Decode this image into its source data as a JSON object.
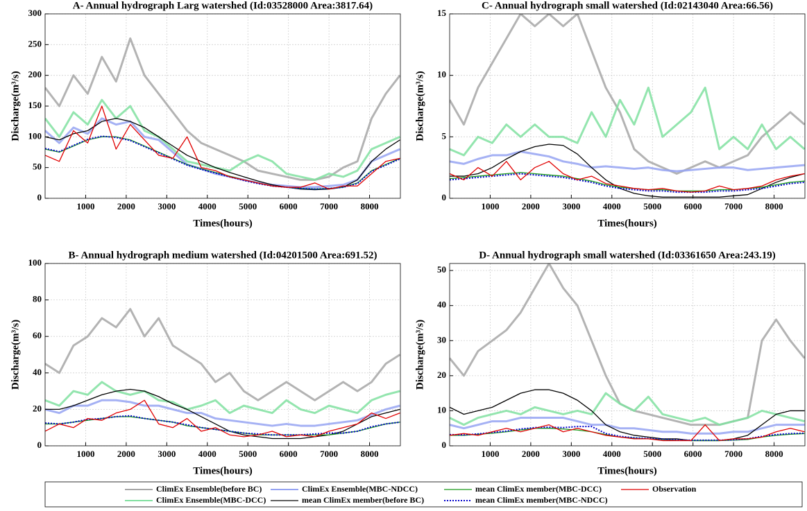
{
  "chart_data": [
    {
      "type": "line",
      "title": "A- Annual hydrograph Larg watershed (Id:03528000 Area:3817.64)",
      "xlabel": "Times(hours)",
      "ylabel": "Discharge(m³/s)",
      "x": [
        0,
        350,
        700,
        1050,
        1400,
        1750,
        2100,
        2450,
        2800,
        3150,
        3500,
        3850,
        4200,
        4550,
        4900,
        5250,
        5600,
        5950,
        6300,
        6650,
        7000,
        7350,
        7700,
        8050,
        8400,
        8750
      ],
      "xlim": [
        0,
        8760
      ],
      "xticks": [
        1000,
        2000,
        3000,
        4000,
        5000,
        6000,
        7000,
        8000
      ],
      "ylim": [
        0,
        300
      ],
      "yticks": [
        0,
        50,
        100,
        150,
        200,
        250,
        300
      ],
      "grid": true,
      "series": [
        {
          "name": "ClimEx Ensemble(before BC)",
          "color": "#a6a6a6",
          "style": "ensemble",
          "values": [
            180,
            150,
            200,
            170,
            230,
            190,
            260,
            200,
            170,
            140,
            110,
            90,
            80,
            70,
            60,
            45,
            40,
            35,
            30,
            30,
            35,
            50,
            60,
            130,
            170,
            200
          ]
        },
        {
          "name": "ClimEx Ensemble(MBC-DCC)",
          "color": "#80e0a0",
          "style": "ensemble",
          "values": [
            130,
            100,
            140,
            120,
            160,
            130,
            150,
            110,
            100,
            80,
            60,
            55,
            50,
            45,
            60,
            70,
            60,
            40,
            35,
            30,
            40,
            35,
            45,
            80,
            90,
            100
          ]
        },
        {
          "name": "ClimEx Ensemble(MBC-NDCC)",
          "color": "#95a3f2",
          "style": "ensemble",
          "values": [
            110,
            90,
            115,
            105,
            130,
            120,
            125,
            100,
            95,
            75,
            55,
            48,
            40,
            35,
            30,
            25,
            22,
            20,
            18,
            18,
            20,
            22,
            30,
            60,
            70,
            80
          ]
        },
        {
          "name": "mean ClimEx member(before BC)",
          "color": "#000000",
          "style": "mean",
          "values": [
            100,
            95,
            105,
            110,
            125,
            130,
            125,
            115,
            100,
            85,
            70,
            60,
            50,
            42,
            35,
            28,
            22,
            18,
            15,
            14,
            15,
            18,
            30,
            60,
            80,
            95
          ]
        },
        {
          "name": "mean ClimEx member(MBC-DCC)",
          "color": "#1a9a1a",
          "style": "mean",
          "values": [
            80,
            75,
            85,
            95,
            100,
            100,
            95,
            85,
            75,
            65,
            55,
            48,
            42,
            36,
            30,
            25,
            20,
            18,
            16,
            15,
            16,
            18,
            25,
            45,
            55,
            65
          ]
        },
        {
          "name": "mean ClimEx member(MBC-NDCC)",
          "color": "#0000cc",
          "style": "dotted",
          "values": [
            81,
            76,
            86,
            96,
            101,
            99,
            94,
            84,
            74,
            64,
            54,
            47,
            41,
            35,
            29,
            24,
            20,
            18,
            16,
            15,
            16,
            18,
            24,
            44,
            54,
            64
          ]
        },
        {
          "name": "Observation",
          "color": "#e00000",
          "style": "mean",
          "values": [
            70,
            60,
            110,
            90,
            150,
            80,
            120,
            95,
            70,
            65,
            100,
            50,
            45,
            35,
            30,
            25,
            20,
            18,
            18,
            25,
            15,
            20,
            20,
            40,
            60,
            65
          ]
        }
      ]
    },
    {
      "type": "line",
      "title": "C- Annual hydrograph small watershed (Id:02143040 Area:66.56)",
      "xlabel": "Times(hours)",
      "ylabel": "Discharge(m³/s)",
      "x": [
        0,
        350,
        700,
        1050,
        1400,
        1750,
        2100,
        2450,
        2800,
        3150,
        3500,
        3850,
        4200,
        4550,
        4900,
        5250,
        5600,
        5950,
        6300,
        6650,
        7000,
        7350,
        7700,
        8050,
        8400,
        8750
      ],
      "xlim": [
        0,
        8760
      ],
      "xticks": [
        1000,
        2000,
        3000,
        4000,
        5000,
        6000,
        7000,
        8000
      ],
      "ylim": [
        0,
        15
      ],
      "yticks": [
        0,
        5,
        10,
        15
      ],
      "grid": true,
      "series": [
        {
          "name": "ClimEx Ensemble(before BC)",
          "color": "#a6a6a6",
          "style": "ensemble",
          "values": [
            8,
            6,
            9,
            11,
            13,
            15,
            14,
            15,
            14,
            15,
            12,
            9,
            7,
            4,
            3,
            2.5,
            2,
            2.5,
            3,
            2.5,
            3,
            3.5,
            5,
            6,
            7,
            6
          ]
        },
        {
          "name": "ClimEx Ensemble(MBC-DCC)",
          "color": "#80e0a0",
          "style": "ensemble",
          "values": [
            4,
            3.5,
            5,
            4.5,
            6,
            5,
            6,
            5,
            5,
            4.5,
            7,
            5,
            8,
            6,
            9,
            5,
            6,
            7,
            9,
            4,
            5,
            4,
            6,
            4,
            5,
            4
          ]
        },
        {
          "name": "ClimEx Ensemble(MBC-NDCC)",
          "color": "#95a3f2",
          "style": "ensemble",
          "values": [
            3,
            2.8,
            3.2,
            3.5,
            3.5,
            3.8,
            3.6,
            3.4,
            3,
            2.8,
            2.5,
            2.6,
            2.5,
            2.4,
            2.5,
            2.3,
            2.2,
            2.3,
            2.4,
            2.5,
            2.5,
            2.3,
            2.4,
            2.5,
            2.6,
            2.7
          ]
        },
        {
          "name": "mean ClimEx member(before BC)",
          "color": "#000000",
          "style": "mean",
          "values": [
            1.8,
            1.8,
            2,
            2.5,
            3.2,
            3.8,
            4.2,
            4.4,
            4.3,
            3.6,
            2.5,
            1.5,
            0.8,
            0.4,
            0.2,
            0.1,
            0.1,
            0.1,
            0.1,
            0.1,
            0.2,
            0.3,
            0.8,
            1.3,
            1.7,
            2
          ]
        },
        {
          "name": "mean ClimEx member(MBC-DCC)",
          "color": "#1a9a1a",
          "style": "mean",
          "values": [
            1.6,
            1.7,
            1.8,
            1.9,
            2,
            2.1,
            2,
            1.9,
            1.8,
            1.6,
            1.4,
            1.1,
            0.9,
            0.8,
            0.7,
            0.7,
            0.6,
            0.6,
            0.6,
            0.7,
            0.7,
            0.8,
            0.9,
            1.1,
            1.3,
            1.4
          ]
        },
        {
          "name": "mean ClimEx member(MBC-NDCC)",
          "color": "#0000cc",
          "style": "dotted",
          "values": [
            1.5,
            1.6,
            1.7,
            1.8,
            1.9,
            2,
            1.9,
            1.8,
            1.7,
            1.5,
            1.3,
            1,
            0.8,
            0.7,
            0.6,
            0.6,
            0.5,
            0.5,
            0.5,
            0.6,
            0.6,
            0.7,
            0.8,
            1,
            1.2,
            1.3
          ]
        },
        {
          "name": "Observation",
          "color": "#e00000",
          "style": "mean",
          "values": [
            2,
            1.5,
            2.5,
            1.8,
            3,
            1.5,
            2.5,
            3,
            2,
            1.5,
            1.8,
            1.2,
            1,
            0.8,
            0.7,
            0.8,
            0.6,
            0.5,
            0.6,
            1,
            0.7,
            0.8,
            1,
            1.5,
            1.8,
            2
          ]
        }
      ]
    },
    {
      "type": "line",
      "title": "B- Annual hydrograph medium watershed (Id:04201500 Area:691.52)",
      "xlabel": "Times(hours)",
      "ylabel": "Discharge(m³/s)",
      "x": [
        0,
        350,
        700,
        1050,
        1400,
        1750,
        2100,
        2450,
        2800,
        3150,
        3500,
        3850,
        4200,
        4550,
        4900,
        5250,
        5600,
        5950,
        6300,
        6650,
        7000,
        7350,
        7700,
        8050,
        8400,
        8750
      ],
      "xlim": [
        0,
        8760
      ],
      "xticks": [
        1000,
        2000,
        3000,
        4000,
        5000,
        6000,
        7000,
        8000
      ],
      "ylim": [
        0,
        100
      ],
      "yticks": [
        0,
        20,
        40,
        60,
        80,
        100
      ],
      "grid": true,
      "series": [
        {
          "name": "ClimEx Ensemble(before BC)",
          "color": "#a6a6a6",
          "style": "ensemble",
          "values": [
            45,
            40,
            55,
            60,
            70,
            65,
            75,
            60,
            70,
            55,
            50,
            45,
            35,
            40,
            30,
            25,
            30,
            35,
            30,
            25,
            30,
            35,
            30,
            35,
            45,
            50
          ]
        },
        {
          "name": "ClimEx Ensemble(MBC-DCC)",
          "color": "#80e0a0",
          "style": "ensemble",
          "values": [
            25,
            22,
            30,
            28,
            35,
            30,
            28,
            30,
            25,
            24,
            20,
            22,
            25,
            18,
            22,
            20,
            18,
            25,
            20,
            18,
            22,
            20,
            18,
            25,
            28,
            30
          ]
        },
        {
          "name": "ClimEx Ensemble(MBC-NDCC)",
          "color": "#95a3f2",
          "style": "ensemble",
          "values": [
            20,
            18,
            22,
            22,
            25,
            25,
            24,
            22,
            22,
            20,
            18,
            18,
            15,
            14,
            13,
            12,
            11,
            12,
            11,
            11,
            12,
            13,
            14,
            17,
            20,
            22
          ]
        },
        {
          "name": "mean ClimEx member(before BC)",
          "color": "#000000",
          "style": "mean",
          "values": [
            20,
            20,
            22,
            25,
            28,
            30,
            31,
            30,
            27,
            23,
            20,
            16,
            12,
            8,
            6,
            5,
            4,
            4,
            4,
            5,
            6,
            8,
            12,
            16,
            18,
            20
          ]
        },
        {
          "name": "mean ClimEx member(MBC-DCC)",
          "color": "#1a9a1a",
          "style": "mean",
          "values": [
            12,
            12,
            13,
            14,
            15,
            16,
            16,
            15,
            14,
            13,
            11,
            10,
            9,
            8,
            7,
            6,
            6,
            6,
            6,
            6,
            6,
            7,
            8,
            10,
            12,
            13
          ]
        },
        {
          "name": "mean ClimEx member(MBC-NDCC)",
          "color": "#0000cc",
          "style": "dotted",
          "values": [
            12.5,
            12,
            13,
            14.5,
            15,
            16,
            16.5,
            15,
            14,
            13,
            11.5,
            10,
            9,
            8,
            7,
            6.5,
            6,
            6,
            6,
            6.5,
            7,
            7,
            8,
            10.5,
            12,
            13
          ]
        },
        {
          "name": "Observation",
          "color": "#e00000",
          "style": "mean",
          "values": [
            8,
            12,
            10,
            15,
            14,
            18,
            20,
            25,
            12,
            10,
            15,
            8,
            10,
            6,
            5,
            6,
            8,
            5,
            6,
            5,
            8,
            10,
            12,
            18,
            15,
            18
          ]
        }
      ]
    },
    {
      "type": "line",
      "title": "D- Annual hydrograph small watershed (Id:03361650 Area:243.19)",
      "xlabel": "Times(hours)",
      "ylabel": "Discharge(m³/s)",
      "x": [
        0,
        350,
        700,
        1050,
        1400,
        1750,
        2100,
        2450,
        2800,
        3150,
        3500,
        3850,
        4200,
        4550,
        4900,
        5250,
        5600,
        5950,
        6300,
        6650,
        7000,
        7350,
        7700,
        8050,
        8400,
        8750
      ],
      "xlim": [
        0,
        8760
      ],
      "xticks": [
        1000,
        2000,
        3000,
        4000,
        5000,
        6000,
        7000,
        8000
      ],
      "ylim": [
        0,
        52
      ],
      "yticks": [
        0,
        10,
        20,
        30,
        40,
        50
      ],
      "grid": true,
      "series": [
        {
          "name": "ClimEx Ensemble(before BC)",
          "color": "#a6a6a6",
          "style": "ensemble",
          "values": [
            25,
            20,
            27,
            30,
            33,
            38,
            45,
            52,
            45,
            40,
            30,
            20,
            12,
            10,
            9,
            8,
            7,
            6,
            6,
            6,
            7,
            8,
            30,
            36,
            30,
            25
          ]
        },
        {
          "name": "ClimEx Ensemble(MBC-DCC)",
          "color": "#80e0a0",
          "style": "ensemble",
          "values": [
            8,
            6,
            8,
            9,
            10,
            9,
            11,
            10,
            9,
            10,
            9,
            15,
            12,
            10,
            14,
            9,
            8,
            7,
            8,
            6,
            7,
            8,
            10,
            9,
            8,
            7
          ]
        },
        {
          "name": "ClimEx Ensemble(MBC-NDCC)",
          "color": "#95a3f2",
          "style": "ensemble",
          "values": [
            6,
            5,
            6,
            7,
            7,
            8,
            8,
            8,
            8,
            7,
            6,
            6,
            5,
            5,
            4.5,
            4,
            4,
            3.5,
            3.5,
            3.5,
            4,
            4,
            5,
            6,
            6,
            6
          ]
        },
        {
          "name": "mean ClimEx member(before BC)",
          "color": "#000000",
          "style": "mean",
          "values": [
            11,
            9,
            10,
            11,
            13,
            15,
            16,
            16,
            15,
            13,
            10,
            6,
            4,
            3,
            2.5,
            2,
            2,
            1.5,
            1.5,
            1.5,
            2,
            3,
            6,
            9,
            10,
            10
          ]
        },
        {
          "name": "mean ClimEx member(MBC-DCC)",
          "color": "#1a9a1a",
          "style": "mean",
          "values": [
            3,
            3,
            3.3,
            3.6,
            4,
            4.5,
            5,
            5,
            4.8,
            4.5,
            4,
            3.2,
            2.5,
            2.2,
            2,
            1.8,
            1.6,
            1.5,
            1.5,
            1.5,
            1.6,
            1.8,
            2.5,
            3,
            3.3,
            3.5
          ]
        },
        {
          "name": "mean ClimEx member(MBC-NDCC)",
          "color": "#0000cc",
          "style": "dotted",
          "values": [
            3.2,
            3.1,
            3.4,
            3.8,
            4.2,
            4.8,
            5.2,
            5.3,
            5.2,
            5.5,
            5.5,
            3.5,
            2.7,
            2.3,
            2.1,
            1.9,
            1.7,
            1.6,
            1.6,
            1.6,
            1.7,
            2,
            2.7,
            3.2,
            3.5,
            3.6
          ]
        },
        {
          "name": "Observation",
          "color": "#e00000",
          "style": "mean",
          "values": [
            3,
            3.5,
            3,
            4,
            5,
            4,
            5,
            6,
            4,
            5,
            4,
            3,
            2.5,
            2,
            2,
            1.5,
            1.5,
            1.5,
            6,
            1.5,
            2,
            2,
            2.5,
            4,
            5,
            4
          ]
        }
      ]
    }
  ]
}
